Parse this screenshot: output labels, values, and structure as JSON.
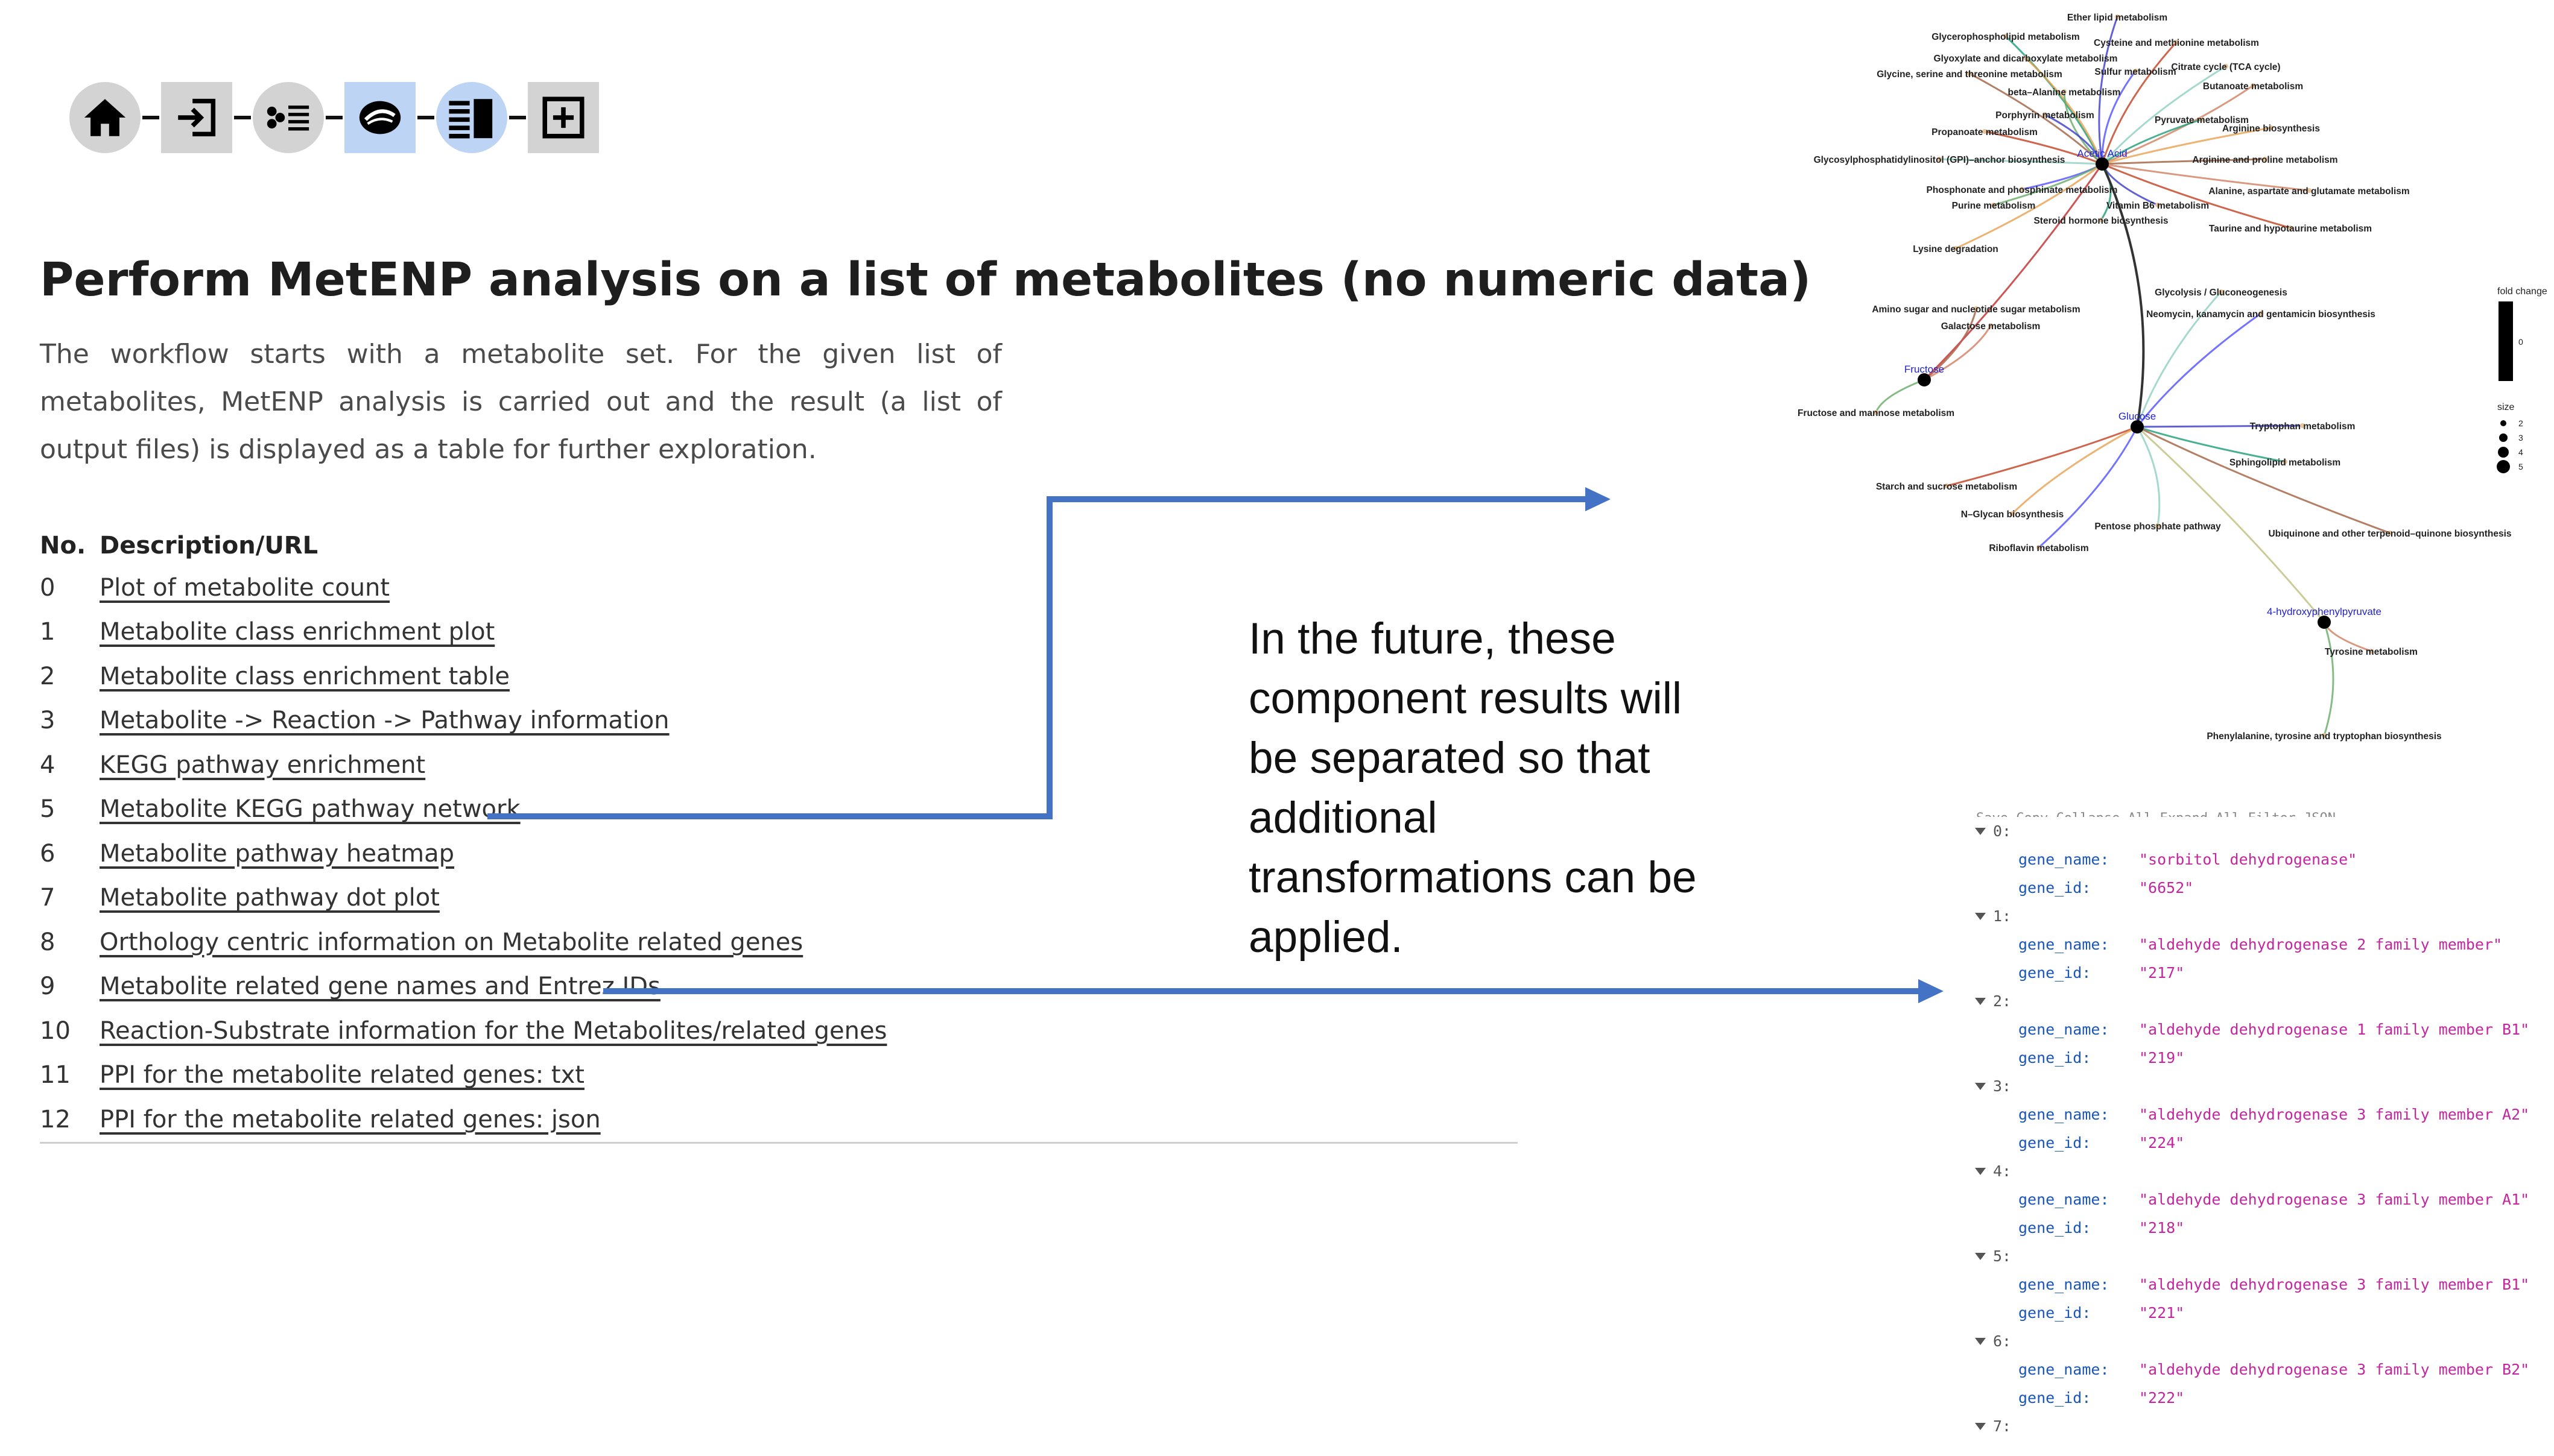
{
  "toolbar": {
    "buttons": [
      {
        "name": "home-icon",
        "active": false
      },
      {
        "name": "login-icon",
        "active": false
      },
      {
        "name": "list-points-icon",
        "active": false
      },
      {
        "name": "eye-icon",
        "active": true
      },
      {
        "name": "panel-list-icon",
        "active": true
      },
      {
        "name": "plus-box-icon",
        "active": false
      }
    ]
  },
  "header": {
    "title": "Perform MetENP analysis on a list of metabolites (no numeric data)",
    "description": "The workflow starts with a metabolite set. For the given list of metabolites, MetENP analysis is carried out and the result (a list of output files) is displayed as a table for further exploration."
  },
  "table": {
    "col_no": "No.",
    "col_desc": "Description/URL",
    "rows": [
      {
        "no": "0",
        "label": "Plot of metabolite count"
      },
      {
        "no": "1",
        "label": "Metabolite class enrichment plot"
      },
      {
        "no": "2",
        "label": "Metabolite class enrichment table"
      },
      {
        "no": "3",
        "label": "Metabolite -> Reaction -> Pathway information"
      },
      {
        "no": "4",
        "label": "KEGG pathway enrichment"
      },
      {
        "no": "5",
        "label": "Metabolite KEGG pathway network"
      },
      {
        "no": "6",
        "label": "Metabolite pathway heatmap"
      },
      {
        "no": "7",
        "label": "Metabolite pathway dot plot"
      },
      {
        "no": "8",
        "label": "Orthology centric information on Metabolite related genes"
      },
      {
        "no": "9",
        "label": "Metabolite related gene names and Entrez IDs"
      },
      {
        "no": "10",
        "label": "Reaction-Substrate information for the Metabolites/related genes"
      },
      {
        "no": "11",
        "label": "PPI for the metabolite related genes: txt"
      },
      {
        "no": "12",
        "label": "PPI for the metabolite related genes: json"
      }
    ]
  },
  "note": "In the future, these component results will be separated so that additional transformations can be applied.",
  "network": {
    "hubs": [
      "Acetic Acid",
      "Fructose",
      "Glucose",
      "4-hydroxyphenylpyruvate"
    ],
    "pathways": [
      "Ether lipid metabolism",
      "Glycerophospholipid metabolism",
      "Cysteine and methionine metabolism",
      "Glyoxylate and dicarboxylate metabolism",
      "Citrate cycle (TCA cycle)",
      "Glycine, serine and threonine metabolism",
      "Sulfur metabolism",
      "Butanoate metabolism",
      "beta–Alanine metabolism",
      "Porphyrin metabolism",
      "Pyruvate metabolism",
      "Propanoate metabolism",
      "Arginine biosynthesis",
      "Glycosylphosphatidylinositol (GPI)–anchor biosynthesis",
      "Arginine and proline metabolism",
      "Phosphonate and phosphinate metabolism",
      "Alanine, aspartate and glutamate metabolism",
      "Purine metabolism",
      "Vitamin B6 metabolism",
      "Steroid hormone biosynthesis",
      "Taurine and hypotaurine metabolism",
      "Lysine degradation",
      "Glycolysis / Gluconeogenesis",
      "Amino sugar and nucleotide sugar metabolism",
      "Neomycin, kanamycin and gentamicin biosynthesis",
      "Galactose metabolism",
      "Fructose and mannose metabolism",
      "Tryptophan metabolism",
      "Sphingolipid metabolism",
      "Starch and sucrose metabolism",
      "N–Glycan biosynthesis",
      "Pentose phosphate pathway",
      "Ubiquinone and other terpenoid–quinone biosynthesis",
      "Riboflavin metabolism",
      "Tyrosine metabolism",
      "Phenylalanine, tyrosine and tryptophan biosynthesis"
    ],
    "legend": {
      "fold_title": "fold change",
      "fold_tick": "0",
      "size_title": "size",
      "sizes": [
        "2",
        "3",
        "4",
        "5"
      ]
    }
  },
  "json_view": {
    "toolbar_text": "Save  Copy  Collapse All  Expand All  Filter JSON",
    "entries": [
      {
        "index": "0:",
        "gene_name": "\"sorbitol dehydrogenase\"",
        "gene_id": "\"6652\""
      },
      {
        "index": "1:",
        "gene_name": "\"aldehyde dehydrogenase 2 family member\"",
        "gene_id": "\"217\""
      },
      {
        "index": "2:",
        "gene_name": "\"aldehyde dehydrogenase 1 family member B1\"",
        "gene_id": "\"219\""
      },
      {
        "index": "3:",
        "gene_name": "\"aldehyde dehydrogenase 3 family member A2\"",
        "gene_id": "\"224\""
      },
      {
        "index": "4:",
        "gene_name": "\"aldehyde dehydrogenase 3 family member A1\"",
        "gene_id": "\"218\""
      },
      {
        "index": "5:",
        "gene_name": "\"aldehyde dehydrogenase 3 family member B1\"",
        "gene_id": "\"221\""
      },
      {
        "index": "6:",
        "gene_name": "\"aldehyde dehydrogenase 3 family member B2\"",
        "gene_id": "\"222\""
      }
    ],
    "trailing_index": "7:",
    "key_gene_name": "gene_name:",
    "key_gene_id": "gene_id:"
  },
  "colors": {
    "arrow": "#4472c4",
    "hub_label": "#2222cc",
    "json_key": "#1a56b8",
    "json_value": "#c4269f"
  }
}
